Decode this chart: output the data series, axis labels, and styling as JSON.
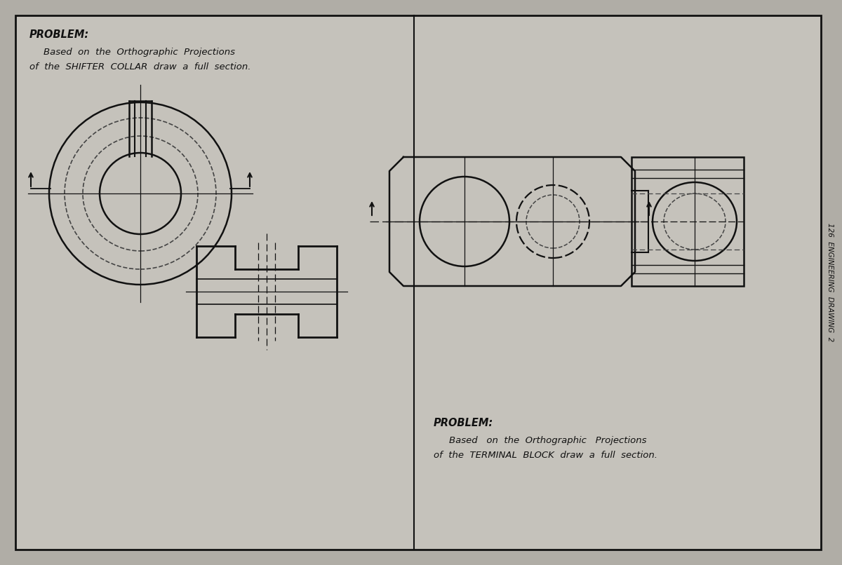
{
  "bg_color": "#c5c2bb",
  "line_color": "#111111",
  "dash_color": "#444444",
  "page_bg": "#b0ada6",
  "title1": "PROBLEM:",
  "text1a": "Based  on  the  Orthographic  Projections",
  "text1b": "of  the  SHIFTER  COLLAR  draw  a  full  section.",
  "title2": "PROBLEM:",
  "text2a": "Based   on  the  Orthographic   Projections",
  "text2b": "of  the  TERMINAL  BLOCK  draw  a  full  section.",
  "side_text": "126  ENGINEERING  DRAWING  2"
}
